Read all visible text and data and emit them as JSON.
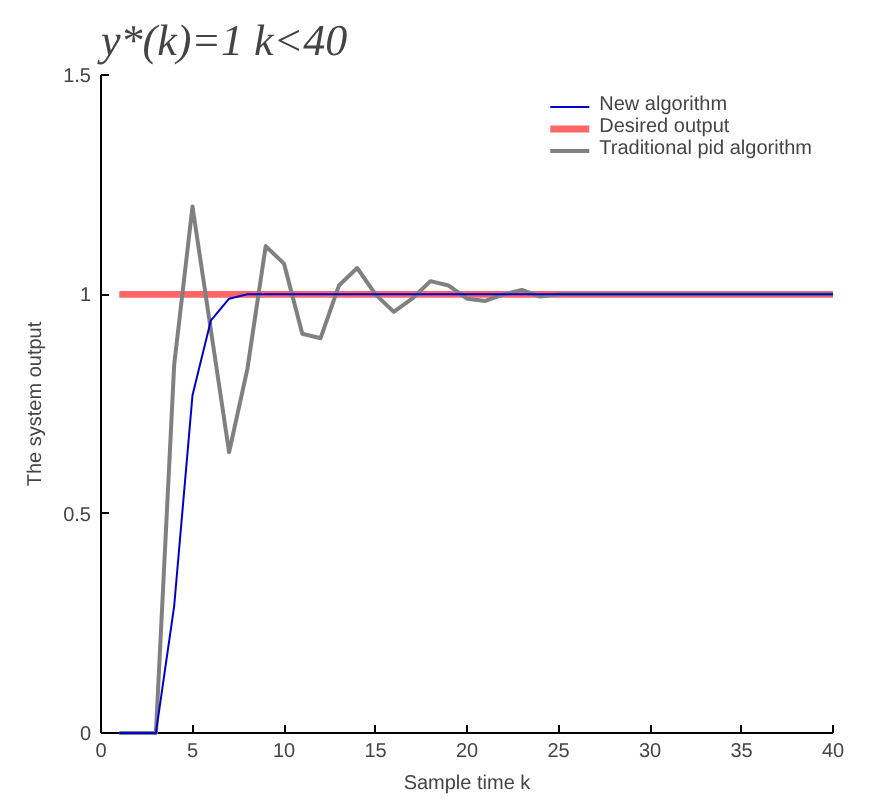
{
  "chart_data": {
    "type": "line",
    "title": "y*(k)=1        k<40",
    "xlabel": "Sample time k",
    "ylabel": "The system output",
    "x": [
      1,
      2,
      3,
      4,
      5,
      6,
      7,
      8,
      9,
      10,
      11,
      12,
      13,
      14,
      15,
      16,
      17,
      18,
      19,
      20,
      21,
      22,
      23,
      24,
      25,
      26,
      27,
      28,
      29,
      30,
      31,
      32,
      33,
      34,
      35,
      36,
      37,
      38,
      39,
      40
    ],
    "series": [
      {
        "name": "New algorithm",
        "color": "#0000cc",
        "values": [
          0,
          0,
          0,
          0.29,
          0.77,
          0.94,
          0.99,
          1,
          1,
          1,
          1,
          1,
          1,
          1,
          1,
          1,
          1,
          1,
          1,
          1,
          1,
          1,
          1,
          1,
          1,
          1,
          1,
          1,
          1,
          1,
          1,
          1,
          1,
          1,
          1,
          1,
          1,
          1,
          1,
          1
        ]
      },
      {
        "name": "Desired output",
        "color": "#ff6666",
        "values": [
          1,
          1,
          1,
          1,
          1,
          1,
          1,
          1,
          1,
          1,
          1,
          1,
          1,
          1,
          1,
          1,
          1,
          1,
          1,
          1,
          1,
          1,
          1,
          1,
          1,
          1,
          1,
          1,
          1,
          1,
          1,
          1,
          1,
          1,
          1,
          1,
          1,
          1,
          1,
          1
        ]
      },
      {
        "name": "Traditional pid algorithm",
        "color": "#808080",
        "values": [
          0,
          0,
          0,
          0.84,
          1.2,
          0.92,
          0.64,
          0.83,
          1.11,
          1.07,
          0.91,
          0.9,
          1.02,
          1.06,
          1,
          0.96,
          0.99,
          1.03,
          1.02,
          0.99,
          0.985,
          1,
          1.01,
          0.995,
          1,
          1,
          1,
          1,
          1,
          1,
          1,
          1,
          1,
          1,
          1,
          1,
          1,
          1,
          1,
          1
        ]
      }
    ],
    "xlim": [
      0,
      40
    ],
    "xticks": [
      0,
      5,
      10,
      15,
      20,
      25,
      30,
      35,
      40
    ],
    "ylim": [
      0,
      1.5
    ],
    "yticks": [
      0,
      0.5,
      1,
      1.5
    ],
    "grid": false,
    "legend": "top right",
    "line_style": "solid",
    "marker": "none"
  }
}
